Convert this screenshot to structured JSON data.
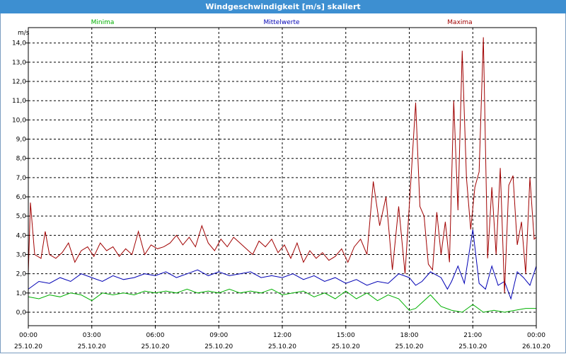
{
  "window": {
    "title": "Windgeschwindigkeit [m/s] skaliert"
  },
  "colors": {
    "min": "#00b000",
    "mean": "#0000b4",
    "max": "#a00000",
    "titlebar": "#3d8fd1"
  },
  "chart_data": {
    "type": "line",
    "title": "Windgeschwindigkeit [m/s] skaliert",
    "ylabel": "m/s",
    "xlabel": "",
    "ylim": [
      -0.7,
      14.8
    ],
    "xlim": [
      0,
      24
    ],
    "yticks": [
      "0,0",
      "1,0",
      "2,0",
      "3,0",
      "4,0",
      "5,0",
      "6,0",
      "7,0",
      "8,0",
      "9,0",
      "10,0",
      "11,0",
      "12,0",
      "13,0",
      "14,0"
    ],
    "xticks": [
      {
        "time": "00:00",
        "date": "25.10.20"
      },
      {
        "time": "03:00",
        "date": "25.10.20"
      },
      {
        "time": "06:00",
        "date": "25.10.20"
      },
      {
        "time": "09:00",
        "date": "25.10.20"
      },
      {
        "time": "12:00",
        "date": "25.10.20"
      },
      {
        "time": "15:00",
        "date": "25.10.20"
      },
      {
        "time": "18:00",
        "date": "25.10.20"
      },
      {
        "time": "21:00",
        "date": "25.10.20"
      },
      {
        "time": "00:00",
        "date": "26.10.20"
      }
    ],
    "grid": true,
    "series": [
      {
        "name": "Minima",
        "color": "#00b000",
        "x": [
          0,
          0.5,
          1,
          1.5,
          2,
          2.5,
          3,
          3.5,
          4,
          4.5,
          5,
          5.5,
          6,
          6.5,
          7,
          7.5,
          8,
          8.5,
          9,
          9.5,
          10,
          10.5,
          11,
          11.5,
          12,
          12.5,
          13,
          13.5,
          14,
          14.5,
          15,
          15.5,
          16,
          16.5,
          17,
          17.5,
          18,
          18.3,
          18.6,
          19,
          19.5,
          20,
          20.5,
          21,
          21.5,
          22,
          22.5,
          23,
          23.5,
          24
        ],
        "y": [
          0.8,
          0.7,
          0.9,
          0.8,
          1.0,
          0.9,
          0.6,
          1.0,
          0.9,
          1.0,
          0.9,
          1.1,
          1.0,
          1.1,
          1.0,
          1.2,
          1.0,
          1.1,
          1.0,
          1.2,
          1.0,
          1.1,
          1.0,
          1.2,
          0.9,
          1.0,
          1.1,
          0.8,
          1.0,
          0.7,
          1.1,
          0.7,
          1.0,
          0.6,
          0.9,
          0.7,
          0.1,
          0.2,
          0.5,
          0.9,
          0.3,
          0.1,
          0.0,
          0.4,
          0.0,
          0.1,
          0.0,
          0.1,
          0.2,
          0.2
        ]
      },
      {
        "name": "Mittelwerte",
        "color": "#0000b4",
        "x": [
          0,
          0.5,
          1,
          1.5,
          2,
          2.5,
          3,
          3.5,
          4,
          4.5,
          5,
          5.5,
          6,
          6.5,
          7,
          7.5,
          8,
          8.5,
          9,
          9.5,
          10,
          10.5,
          11,
          11.5,
          12,
          12.5,
          13,
          13.5,
          14,
          14.5,
          15,
          15.5,
          16,
          16.5,
          17,
          17.5,
          18,
          18.3,
          18.6,
          19,
          19.5,
          19.8,
          20,
          20.3,
          20.6,
          21,
          21.3,
          21.6,
          21.9,
          22.2,
          22.5,
          22.8,
          23.1,
          23.4,
          23.7,
          24
        ],
        "y": [
          1.2,
          1.6,
          1.5,
          1.8,
          1.6,
          2.0,
          1.8,
          1.6,
          1.9,
          1.7,
          1.8,
          2.0,
          1.9,
          2.1,
          1.8,
          2.0,
          2.2,
          1.9,
          2.1,
          1.9,
          2.0,
          2.1,
          1.8,
          1.9,
          1.8,
          2.0,
          1.7,
          1.9,
          1.6,
          1.8,
          1.5,
          1.7,
          1.4,
          1.6,
          1.5,
          2.0,
          1.8,
          1.4,
          1.6,
          2.1,
          1.8,
          1.2,
          1.6,
          2.4,
          1.5,
          4.3,
          1.5,
          1.2,
          2.4,
          1.4,
          1.6,
          0.7,
          2.1,
          1.8,
          1.4,
          2.4
        ]
      },
      {
        "name": "Maxima",
        "color": "#a00000",
        "x": [
          0,
          0.1,
          0.3,
          0.6,
          0.8,
          1,
          1.3,
          1.6,
          1.9,
          2.2,
          2.5,
          2.8,
          3.1,
          3.4,
          3.7,
          4,
          4.3,
          4.6,
          4.9,
          5.2,
          5.5,
          5.8,
          6.1,
          6.4,
          6.7,
          7,
          7.3,
          7.6,
          7.9,
          8.2,
          8.5,
          8.8,
          9.1,
          9.4,
          9.7,
          10,
          10.3,
          10.6,
          10.9,
          11.2,
          11.5,
          11.8,
          12.1,
          12.4,
          12.7,
          13,
          13.3,
          13.6,
          13.9,
          14.2,
          14.5,
          14.8,
          15.1,
          15.4,
          15.7,
          16,
          16.3,
          16.6,
          16.9,
          17.2,
          17.5,
          17.8,
          18.1,
          18.3,
          18.5,
          18.7,
          18.9,
          19.1,
          19.3,
          19.5,
          19.7,
          19.9,
          20.1,
          20.3,
          20.5,
          20.7,
          20.9,
          21.1,
          21.3,
          21.5,
          21.7,
          21.9,
          22.1,
          22.3,
          22.5,
          22.7,
          22.9,
          23.1,
          23.3,
          23.5,
          23.7,
          23.9,
          24
        ],
        "y": [
          2.0,
          5.7,
          3.0,
          2.8,
          4.2,
          3.0,
          2.8,
          3.1,
          3.6,
          2.6,
          3.2,
          3.4,
          2.9,
          3.6,
          3.2,
          3.4,
          2.9,
          3.3,
          3.0,
          4.2,
          3.0,
          3.5,
          3.3,
          3.4,
          3.6,
          4.0,
          3.5,
          3.9,
          3.4,
          4.5,
          3.6,
          3.2,
          3.8,
          3.4,
          3.9,
          3.6,
          3.3,
          3.0,
          3.7,
          3.4,
          3.8,
          3.1,
          3.5,
          2.8,
          3.6,
          2.6,
          3.2,
          2.8,
          3.1,
          2.7,
          2.9,
          3.3,
          2.6,
          3.4,
          3.8,
          3.0,
          6.8,
          4.5,
          6.0,
          2.2,
          5.5,
          2.0,
          7.3,
          10.9,
          5.5,
          5.0,
          2.5,
          2.2,
          5.2,
          3.0,
          4.7,
          2.6,
          11.0,
          5.3,
          13.6,
          7.0,
          4.3,
          6.5,
          7.3,
          14.3,
          2.8,
          6.5,
          3.0,
          7.5,
          1.0,
          6.6,
          7.1,
          3.5,
          4.7,
          2.0,
          7.0,
          3.8,
          3.9
        ]
      }
    ]
  }
}
